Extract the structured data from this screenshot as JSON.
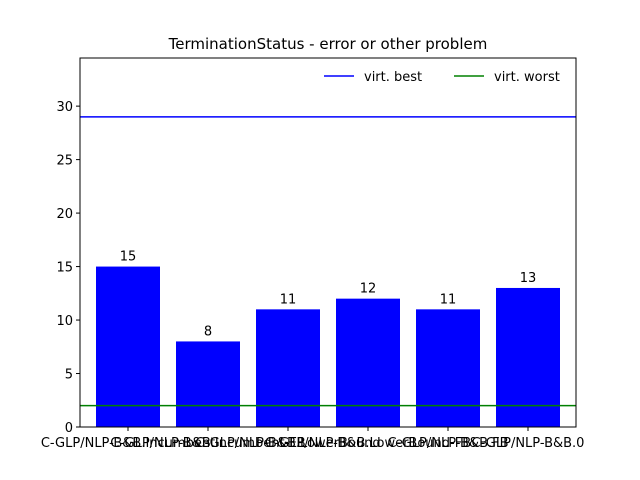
{
  "chart_data": {
    "type": "bar",
    "title": "TerminationStatus - error or other problem",
    "xlabel": "",
    "ylabel": "",
    "categories": [
      "C-GLP/NLP-B&B.Incumbent",
      "C-GLP/NLP-B&B.Incumbent-FB",
      "C-GLP/NLP-B&B.LowerBound",
      "C-GLP/NLP-B&B.LowerBound-FB",
      "C-GLP/NLP-B&B.FB",
      "C-GLP/NLP-B&B.0"
    ],
    "values": [
      15,
      8,
      11,
      12,
      11,
      13
    ],
    "bar_color": "#0000ff",
    "ylim": [
      0,
      34.5
    ],
    "yticks": [
      0,
      5,
      10,
      15,
      20,
      25,
      30
    ],
    "grid": false,
    "legend_position": "top-right",
    "reference_lines": [
      {
        "name": "virt. best",
        "value": 29,
        "color": "#0000ff"
      },
      {
        "name": "virt. worst",
        "value": 2,
        "color": "#008000"
      }
    ]
  }
}
